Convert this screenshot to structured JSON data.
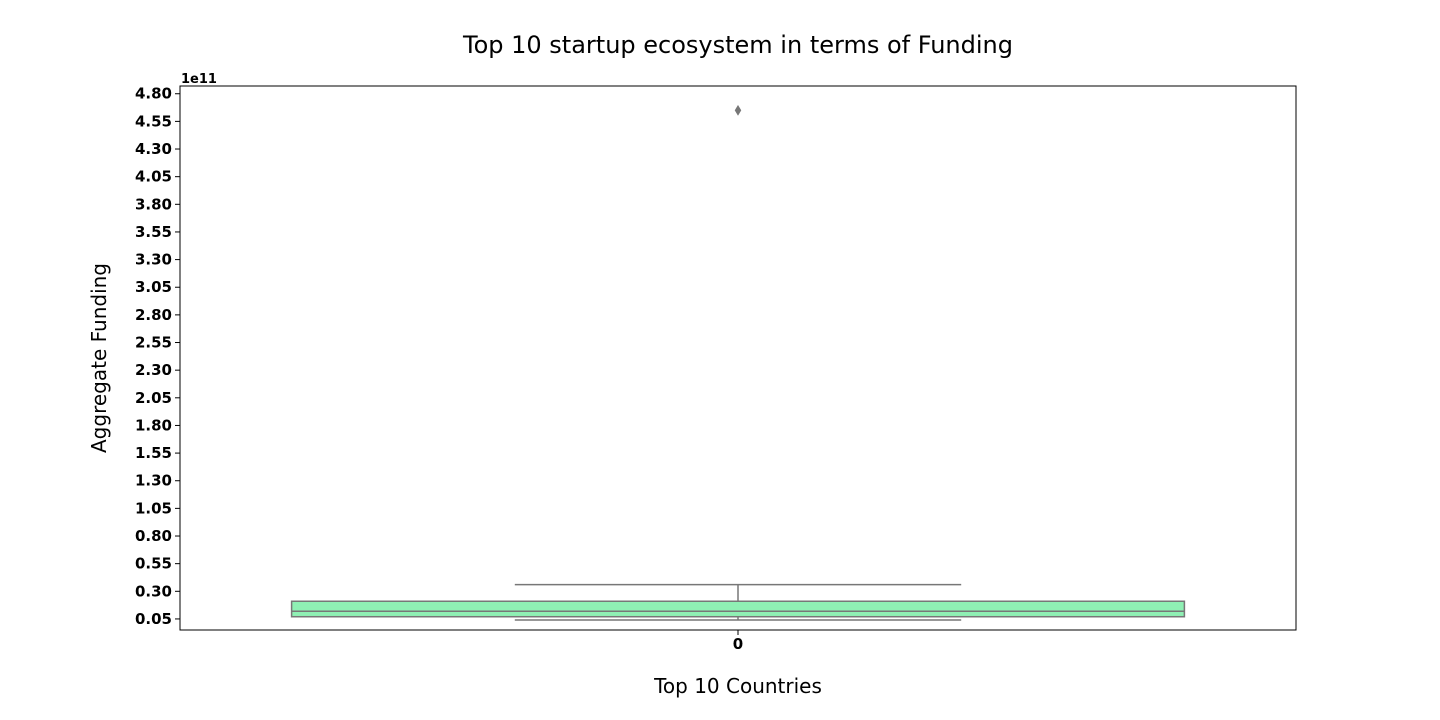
{
  "chart_data": {
    "type": "box",
    "title": "Top 10 startup ecosystem in terms of Funding",
    "xlabel": "Top 10 Countries",
    "ylabel": "Aggregate Funding",
    "y_offset_label": "1e11",
    "y_scale_exponent": 11,
    "categories": [
      "0"
    ],
    "ylim": [
      -0.05,
      4.87
    ],
    "y_ticks": [
      "0.05",
      "0.30",
      "0.55",
      "0.80",
      "1.05",
      "1.30",
      "1.55",
      "1.80",
      "2.05",
      "2.30",
      "2.55",
      "2.80",
      "3.05",
      "3.30",
      "3.55",
      "3.80",
      "4.05",
      "4.30",
      "4.55",
      "4.80"
    ],
    "boxes": [
      {
        "category": "0",
        "whisker_low": 0.04,
        "q1": 0.07,
        "median": 0.12,
        "q3": 0.21,
        "whisker_high": 0.36,
        "outliers": [
          4.65
        ]
      }
    ],
    "grid": false,
    "colors": {
      "box_fill": "#8ff0b4",
      "box_edge": "#777777",
      "axis": "#000000"
    }
  }
}
